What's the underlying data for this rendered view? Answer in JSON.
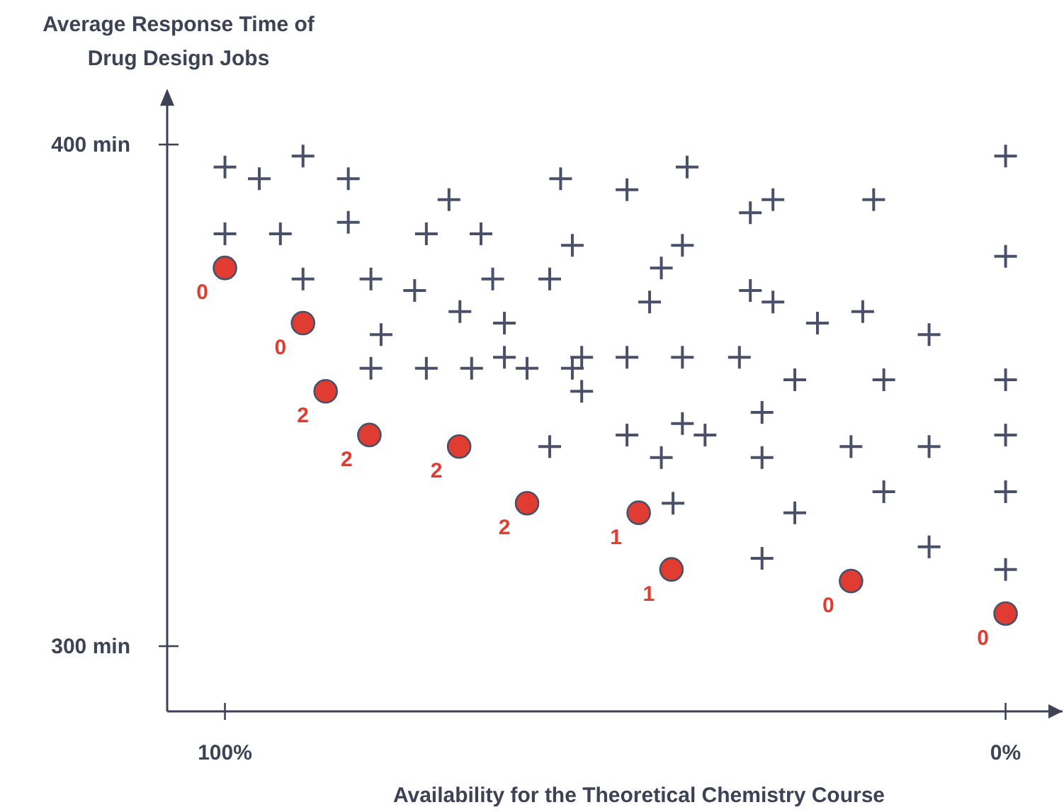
{
  "chart_data": {
    "type": "scatter",
    "xlabel": "Availability for the Theoretical Chemistry Course",
    "ylabel": "Average Response Time of Drug Design Jobs",
    "xlim": [
      107.4,
      -7.3
    ],
    "ylim": [
      287,
      410
    ],
    "xticks": [
      {
        "value": 100,
        "label": "100%"
      },
      {
        "value": 0,
        "label": "0%"
      }
    ],
    "yticks": [
      {
        "value": 300,
        "label": "300 min"
      },
      {
        "value": 400,
        "label": "400 min"
      }
    ],
    "grid": false,
    "annotations": [
      {
        "text": "0",
        "x": 100,
        "y": 375.4
      },
      {
        "text": "0",
        "x": 90,
        "y": 364.4
      },
      {
        "text": "2",
        "x": 87.1,
        "y": 350.8
      },
      {
        "text": "2",
        "x": 81.5,
        "y": 342.1
      },
      {
        "text": "2",
        "x": 70,
        "y": 339.8
      },
      {
        "text": "2",
        "x": 61.3,
        "y": 328.5
      },
      {
        "text": "1",
        "x": 47,
        "y": 326.6
      },
      {
        "text": "1",
        "x": 42.8,
        "y": 315.3
      },
      {
        "text": "0",
        "x": 19.8,
        "y": 313
      },
      {
        "text": "0",
        "x": 0,
        "y": 306.5
      }
    ],
    "series": [
      {
        "marker": "cross",
        "color": "#4a5068",
        "x": [
          100,
          95.6,
          90,
          84.2,
          57,
          71.3,
          100,
          92.9,
          84.2,
          74.2,
          67.2,
          55.5,
          90,
          81.3,
          75.7,
          65.7,
          58.4,
          69.9,
          64.2,
          80,
          81.3,
          74.2,
          68.4,
          64.2,
          61.3,
          55.5,
          54.3,
          54.3,
          58.4,
          48.5,
          40.8,
          32.7,
          29.8,
          16.9,
          0,
          41.4,
          44.1,
          45.6,
          32.7,
          29.8,
          24.1,
          18.3,
          9.8,
          0,
          48.5,
          41.4,
          34.1,
          27,
          15.6,
          0,
          48.5,
          41.4,
          38.5,
          44.1,
          31.2,
          31.2,
          19.8,
          9.8,
          0,
          15.6,
          0,
          42.6,
          27,
          9.8,
          31.2,
          0
        ],
        "values": [
          395.5,
          393.2,
          397.7,
          393.2,
          393.2,
          389,
          382.2,
          382.2,
          384.5,
          382.2,
          382.2,
          379.9,
          373.2,
          373.2,
          370.9,
          373.2,
          373.2,
          366.7,
          364.4,
          362.1,
          355.4,
          355.4,
          355.4,
          357.6,
          355.4,
          355.4,
          357.6,
          350.8,
          339.8,
          391,
          395.5,
          386.4,
          389,
          389,
          397.7,
          379.9,
          375.4,
          368.6,
          370.9,
          368.6,
          364.4,
          366.7,
          362.1,
          377.7,
          357.6,
          357.6,
          357.6,
          353.1,
          353.1,
          353.1,
          342.1,
          344.4,
          342.1,
          337.6,
          346.6,
          337.6,
          339.8,
          339.8,
          342.1,
          330.8,
          330.8,
          328.5,
          326.6,
          319.8,
          317.5,
          315.3
        ]
      },
      {
        "marker": "circle",
        "color": "#e03c31",
        "x": [
          100,
          90,
          87.1,
          81.5,
          70,
          61.3,
          47,
          42.8,
          19.8,
          0
        ],
        "values": [
          375.4,
          364.4,
          350.8,
          342.1,
          339.8,
          328.5,
          326.6,
          315.3,
          313,
          306.5
        ]
      }
    ]
  }
}
